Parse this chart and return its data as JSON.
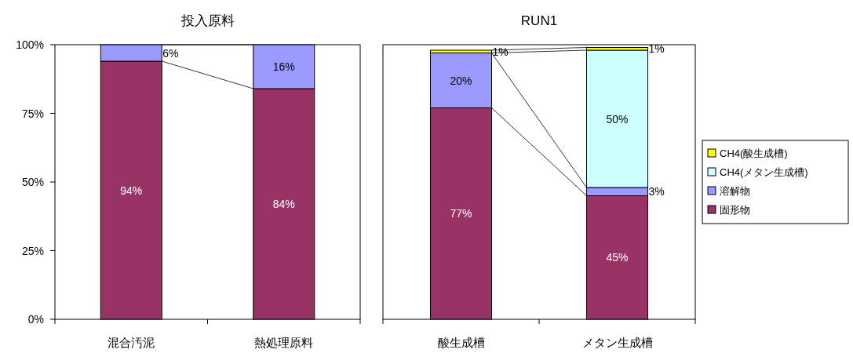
{
  "chart_data": [
    {
      "type": "bar",
      "stacked": true,
      "title": "投入原料",
      "categories": [
        "混合汚泥",
        "熱処理原料"
      ],
      "ylim": [
        0,
        100
      ],
      "yticks": [
        {
          "value": 0,
          "label": "0%"
        },
        {
          "value": 25,
          "label": "25%"
        },
        {
          "value": 50,
          "label": "50%"
        },
        {
          "value": 75,
          "label": "75%"
        },
        {
          "value": 100,
          "label": "100%"
        }
      ],
      "series": [
        {
          "color": "#993366",
          "values": [
            94,
            84
          ],
          "value_labels": [
            "94%",
            "84%"
          ]
        },
        {
          "color": "#9999ff",
          "values": [
            6,
            16
          ],
          "value_labels": [
            "6%",
            "16%"
          ]
        }
      ]
    },
    {
      "type": "bar",
      "stacked": true,
      "title": "RUN1",
      "categories": [
        "酸生成槽",
        "メタン生成槽"
      ],
      "ylim": [
        0,
        100
      ],
      "tick_labels": "x",
      "legend": "right",
      "series": [
        {
          "name": "固形物",
          "color": "#993366",
          "values": [
            77,
            45
          ],
          "value_labels": [
            "77%",
            "45%"
          ]
        },
        {
          "name": "溶解物",
          "color": "#9999ff",
          "values": [
            20,
            3
          ],
          "value_labels": [
            "20%",
            "3%"
          ]
        },
        {
          "name": "CH4(メタン生成槽)",
          "color": "#ccffff",
          "values": [
            0,
            50
          ],
          "value_labels": [
            null,
            "50%"
          ]
        },
        {
          "name": "CH4(酸生成槽)",
          "color": "#ffff00",
          "values": [
            1,
            1
          ],
          "value_labels": [
            "1%",
            "1%"
          ]
        }
      ]
    }
  ]
}
